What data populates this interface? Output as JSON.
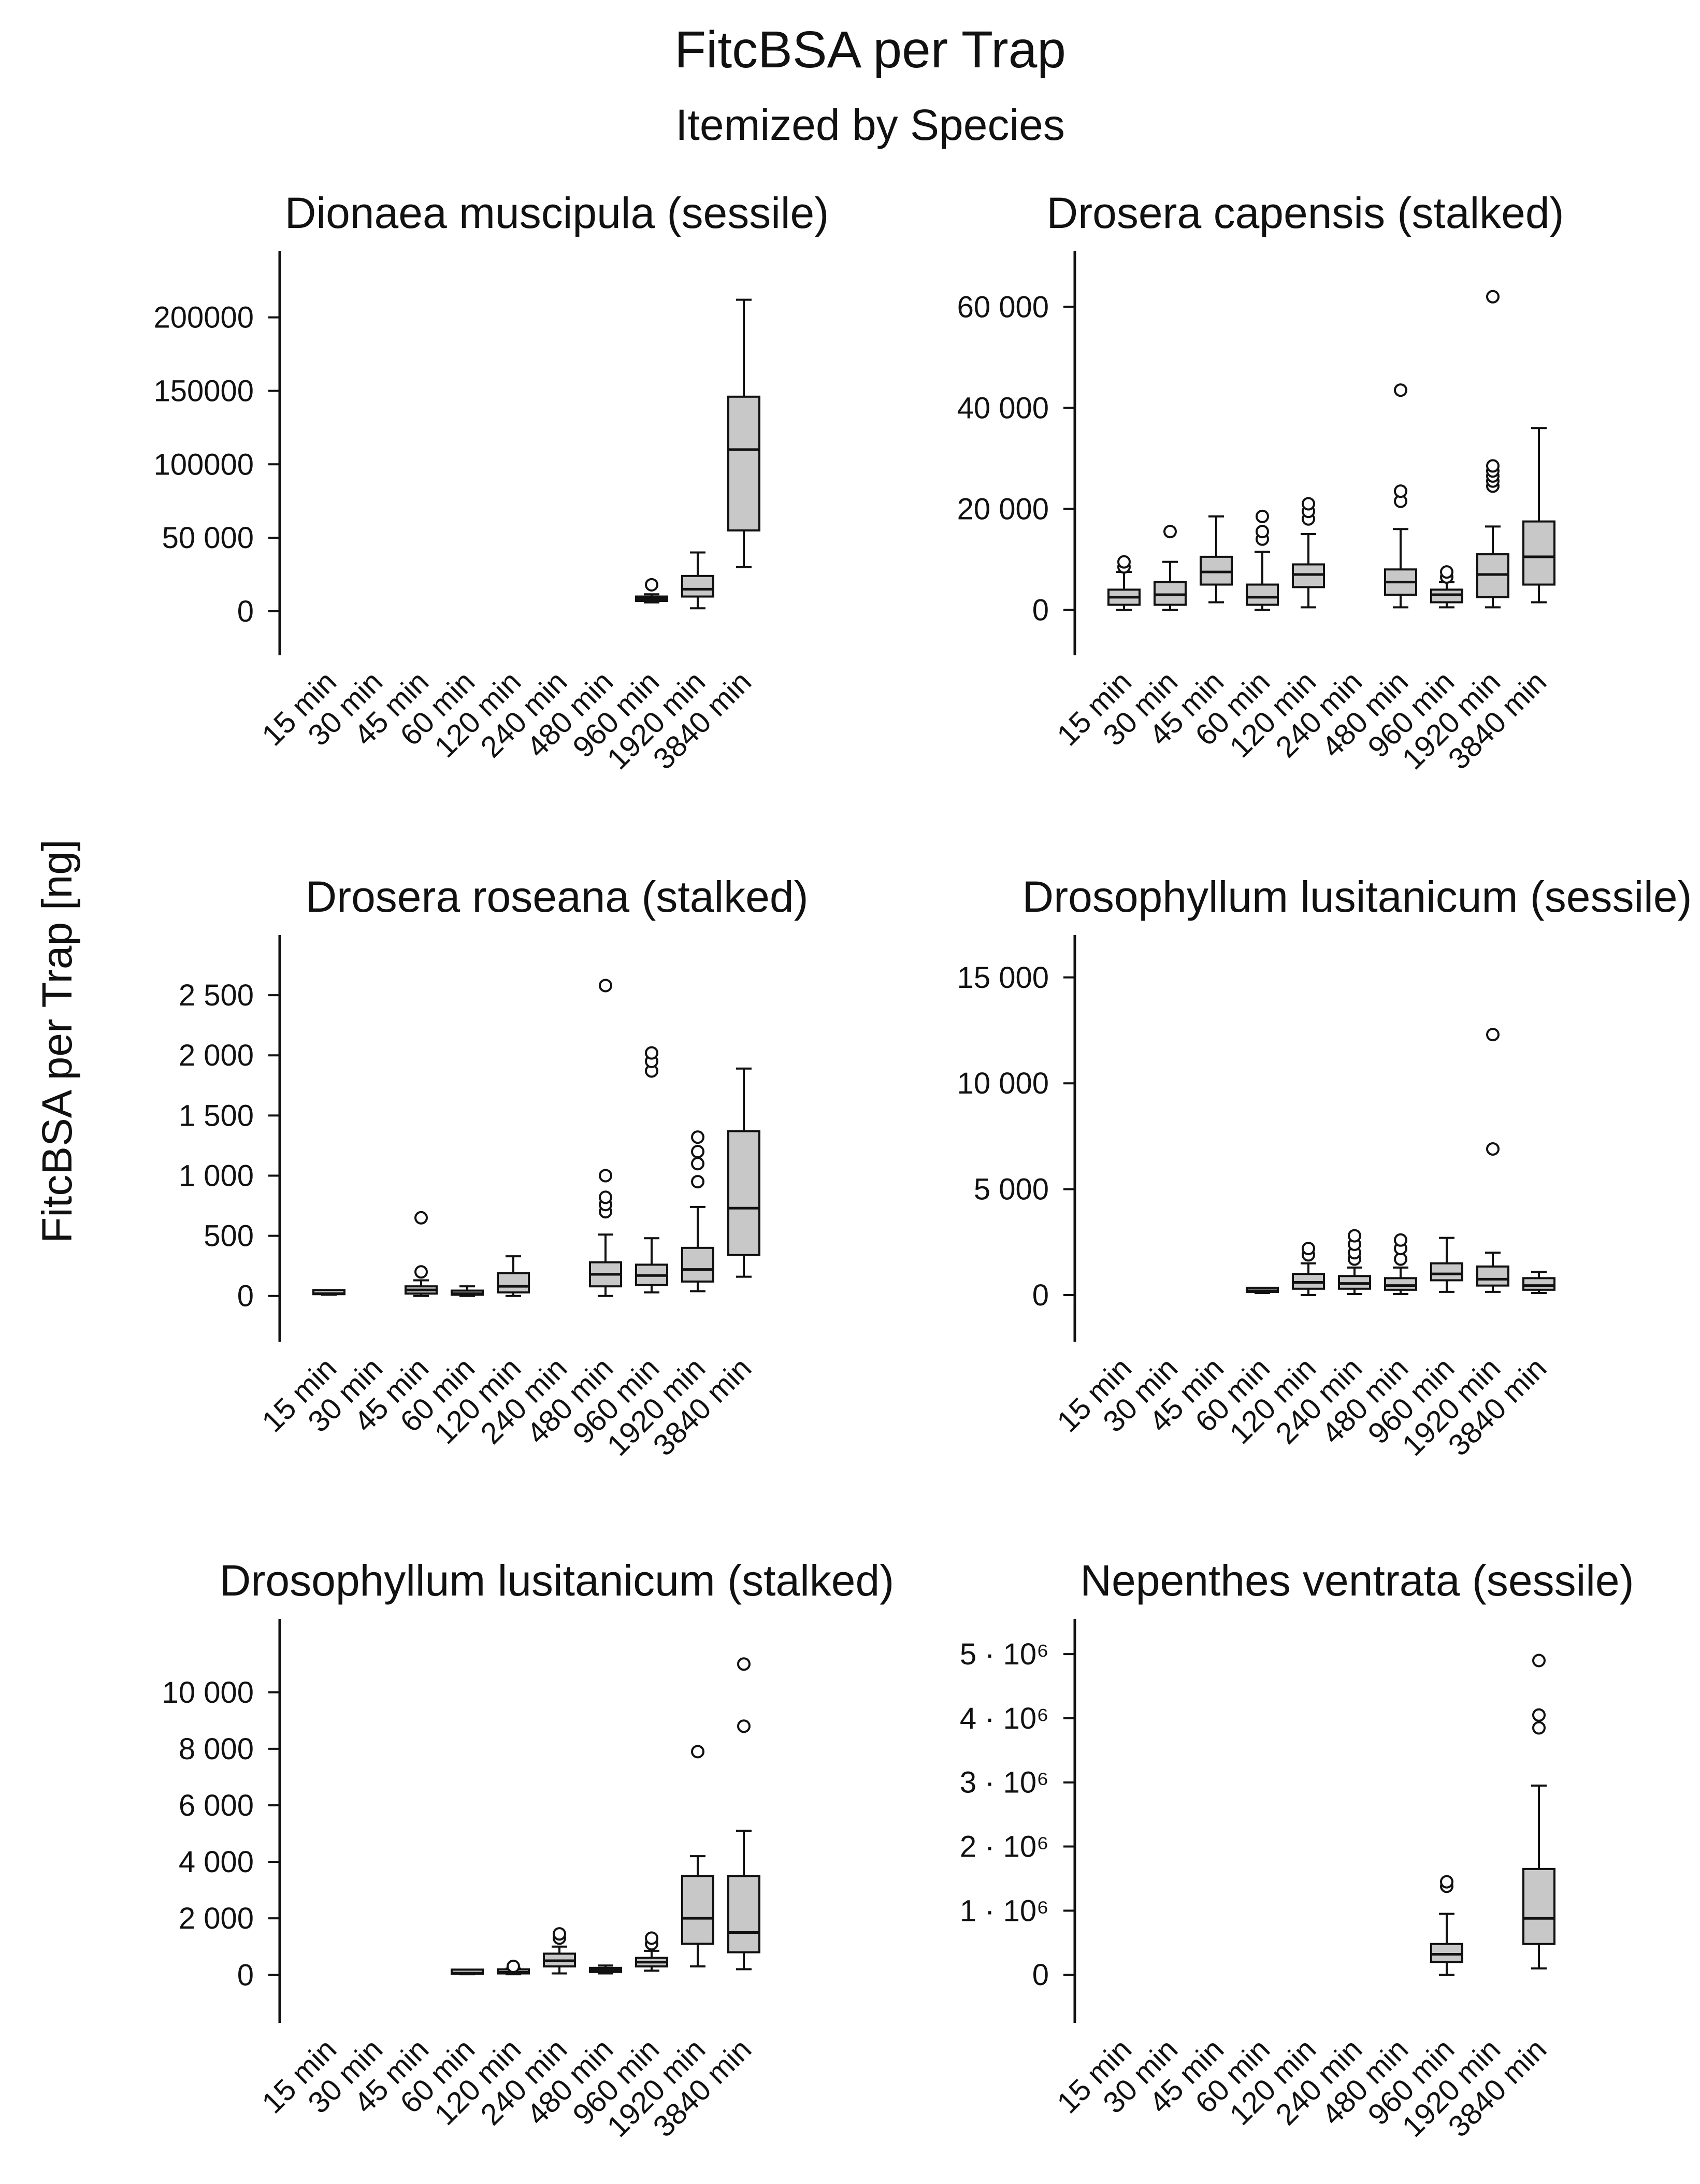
{
  "title": "FitcBSA per Trap",
  "subtitle": "Itemized by Species",
  "ylabel": "FitcBSA per Trap [ng]",
  "colors": {
    "box_fill": "#c8c8c8",
    "stroke": "#111111",
    "background": "#ffffff"
  },
  "categories": [
    "15 min",
    "30 min",
    "45 min",
    "60 min",
    "120 min",
    "240 min",
    "480 min",
    "960 min",
    "1920 min",
    "3840 min"
  ],
  "chart_data": [
    {
      "type": "box",
      "title": "Dionaea muscipula (sessile)",
      "categories": [
        "15 min",
        "30 min",
        "45 min",
        "60 min",
        "120 min",
        "240 min",
        "480 min",
        "960 min",
        "1920 min",
        "3840 min"
      ],
      "ylim": [
        -30000,
        245000
      ],
      "yticks": [
        0,
        50000,
        100000,
        150000,
        200000
      ],
      "ytick_labels": [
        "0",
        "50 000",
        "100000",
        "150000",
        "200000"
      ],
      "boxes": [
        null,
        null,
        null,
        null,
        null,
        null,
        null,
        {
          "whislo": 6000,
          "q1": 7000,
          "med": 8500,
          "q3": 10000,
          "whishi": 11500,
          "fliers": [
            18000
          ]
        },
        {
          "whislo": 2000,
          "q1": 10000,
          "med": 15000,
          "q3": 24000,
          "whishi": 40000,
          "fliers": []
        },
        {
          "whislo": 30000,
          "q1": 55000,
          "med": 110000,
          "q3": 146000,
          "whishi": 212000,
          "fliers": []
        }
      ]
    },
    {
      "type": "box",
      "title": "Drosera capensis (stalked)",
      "categories": [
        "15 min",
        "30 min",
        "45 min",
        "60 min",
        "120 min",
        "240 min",
        "480 min",
        "960 min",
        "1920 min",
        "3840 min"
      ],
      "ylim": [
        -9000,
        71000
      ],
      "yticks": [
        0,
        20000,
        40000,
        60000
      ],
      "ytick_labels": [
        "0",
        "20 000",
        "40 000",
        "60 000"
      ],
      "boxes": [
        {
          "whislo": 0,
          "q1": 1000,
          "med": 2500,
          "q3": 4000,
          "whishi": 7500,
          "fliers": [
            8500,
            9500
          ]
        },
        {
          "whislo": 0,
          "q1": 1000,
          "med": 3000,
          "q3": 5500,
          "whishi": 9500,
          "fliers": [
            15500
          ]
        },
        {
          "whislo": 1500,
          "q1": 5000,
          "med": 7500,
          "q3": 10500,
          "whishi": 18500,
          "fliers": []
        },
        {
          "whislo": 0,
          "q1": 1000,
          "med": 2500,
          "q3": 5000,
          "whishi": 11500,
          "fliers": [
            14000,
            15500,
            18500
          ]
        },
        {
          "whislo": 500,
          "q1": 4500,
          "med": 7000,
          "q3": 9000,
          "whishi": 15000,
          "fliers": [
            18000,
            19500,
            21000
          ]
        },
        null,
        {
          "whislo": 500,
          "q1": 3000,
          "med": 5500,
          "q3": 8000,
          "whishi": 16000,
          "fliers": [
            21500,
            23500,
            43500
          ]
        },
        {
          "whislo": 500,
          "q1": 1500,
          "med": 3000,
          "q3": 4000,
          "whishi": 5500,
          "fliers": [
            6500,
            7500
          ]
        },
        {
          "whislo": 500,
          "q1": 2500,
          "med": 7000,
          "q3": 11000,
          "whishi": 16500,
          "fliers": [
            24500,
            25500,
            26500,
            27500,
            28500,
            62000
          ]
        },
        {
          "whislo": 1500,
          "q1": 5000,
          "med": 10500,
          "q3": 17500,
          "whishi": 36000,
          "fliers": []
        }
      ]
    },
    {
      "type": "box",
      "title": "Drosera roseana (stalked)",
      "categories": [
        "15 min",
        "30 min",
        "45 min",
        "60 min",
        "120 min",
        "240 min",
        "480 min",
        "960 min",
        "1920 min",
        "3840 min"
      ],
      "ylim": [
        -380,
        3000
      ],
      "yticks": [
        0,
        500,
        1000,
        1500,
        2000,
        2500
      ],
      "ytick_labels": [
        "0",
        "500",
        "1 000",
        "1 500",
        "2 000",
        "2 500"
      ],
      "boxes": [
        {
          "whislo": 10,
          "q1": 15,
          "med": 20,
          "q3": 25,
          "whishi": 30,
          "fliers": []
        },
        null,
        {
          "whislo": 0,
          "q1": 20,
          "med": 50,
          "q3": 80,
          "whishi": 130,
          "fliers": [
            200,
            650
          ]
        },
        {
          "whislo": 0,
          "q1": 10,
          "med": 20,
          "q3": 40,
          "whishi": 80,
          "fliers": []
        },
        {
          "whislo": 0,
          "q1": 30,
          "med": 80,
          "q3": 190,
          "whishi": 330,
          "fliers": []
        },
        null,
        {
          "whislo": 0,
          "q1": 80,
          "med": 180,
          "q3": 280,
          "whishi": 510,
          "fliers": [
            700,
            760,
            820,
            1000,
            2580
          ]
        },
        {
          "whislo": 30,
          "q1": 90,
          "med": 170,
          "q3": 260,
          "whishi": 480,
          "fliers": [
            1870,
            1950,
            2020
          ]
        },
        {
          "whislo": 40,
          "q1": 120,
          "med": 220,
          "q3": 400,
          "whishi": 740,
          "fliers": [
            950,
            1100,
            1200,
            1320
          ]
        },
        {
          "whislo": 160,
          "q1": 340,
          "med": 730,
          "q3": 1370,
          "whishi": 1890,
          "fliers": []
        }
      ]
    },
    {
      "type": "box",
      "title": "Drosophyllum lusitanicum (sessile)",
      "categories": [
        "15 min",
        "30 min",
        "45 min",
        "60 min",
        "120 min",
        "240 min",
        "480 min",
        "960 min",
        "1920 min",
        "3840 min"
      ],
      "ylim": [
        -2200,
        17000
      ],
      "yticks": [
        0,
        5000,
        10000,
        15000
      ],
      "ytick_labels": [
        "0",
        "5 000",
        "10 000",
        "15 000"
      ],
      "boxes": [
        null,
        null,
        null,
        {
          "whislo": 100,
          "q1": 150,
          "med": 200,
          "q3": 260,
          "whishi": 320,
          "fliers": []
        },
        {
          "whislo": 0,
          "q1": 300,
          "med": 600,
          "q3": 1000,
          "whishi": 1500,
          "fliers": [
            1900,
            2200
          ]
        },
        {
          "whislo": 50,
          "q1": 300,
          "med": 550,
          "q3": 900,
          "whishi": 1300,
          "fliers": [
            1700,
            2000,
            2400,
            2800
          ]
        },
        {
          "whislo": 50,
          "q1": 250,
          "med": 450,
          "q3": 800,
          "whishi": 1300,
          "fliers": [
            1700,
            2200,
            2600
          ]
        },
        {
          "whislo": 150,
          "q1": 700,
          "med": 1000,
          "q3": 1500,
          "whishi": 2700,
          "fliers": []
        },
        {
          "whislo": 150,
          "q1": 450,
          "med": 750,
          "q3": 1350,
          "whishi": 2000,
          "fliers": [
            6900,
            12300
          ]
        },
        {
          "whislo": 100,
          "q1": 250,
          "med": 450,
          "q3": 800,
          "whishi": 1100,
          "fliers": []
        }
      ]
    },
    {
      "type": "box",
      "title": "Drosophyllum lusitanicum (stalked)",
      "categories": [
        "15 min",
        "30 min",
        "45 min",
        "60 min",
        "120 min",
        "240 min",
        "480 min",
        "960 min",
        "1920 min",
        "3840 min"
      ],
      "ylim": [
        -1700,
        12600
      ],
      "yticks": [
        0,
        2000,
        4000,
        6000,
        8000,
        10000
      ],
      "ytick_labels": [
        "0",
        "2 000",
        "4 000",
        "6 000",
        "8 000",
        "10 000"
      ],
      "boxes": [
        null,
        null,
        null,
        {
          "whislo": 20,
          "q1": 40,
          "med": 60,
          "q3": 90,
          "whishi": 120,
          "fliers": []
        },
        {
          "whislo": 20,
          "q1": 50,
          "med": 90,
          "q3": 150,
          "whishi": 220,
          "fliers": [
            300
          ]
        },
        {
          "whislo": 50,
          "q1": 300,
          "med": 500,
          "q3": 750,
          "whishi": 1000,
          "fliers": [
            1300,
            1450
          ]
        },
        {
          "whislo": 50,
          "q1": 100,
          "med": 180,
          "q3": 240,
          "whishi": 330,
          "fliers": []
        },
        {
          "whislo": 150,
          "q1": 300,
          "med": 450,
          "q3": 600,
          "whishi": 850,
          "fliers": [
            1100,
            1300
          ]
        },
        {
          "whislo": 300,
          "q1": 1100,
          "med": 2000,
          "q3": 3500,
          "whishi": 4200,
          "fliers": [
            7900
          ]
        },
        {
          "whislo": 200,
          "q1": 800,
          "med": 1500,
          "q3": 3500,
          "whishi": 5100,
          "fliers": [
            8800,
            11000
          ]
        }
      ]
    },
    {
      "type": "box",
      "title": "Nepenthes ventrata (sessile)",
      "categories": [
        "15 min",
        "30 min",
        "45 min",
        "60 min",
        "120 min",
        "240 min",
        "480 min",
        "960 min",
        "1920 min",
        "3840 min"
      ],
      "ylim": [
        -750000,
        5550000
      ],
      "yticks": [
        0,
        1000000,
        2000000,
        3000000,
        4000000,
        5000000
      ],
      "ytick_labels": [
        "0",
        "1 · 10⁶",
        "2 · 10⁶",
        "3 · 10⁶",
        "4 · 10⁶",
        "5 · 10⁶"
      ],
      "boxes": [
        null,
        null,
        null,
        null,
        null,
        null,
        null,
        {
          "whislo": 0,
          "q1": 200000,
          "med": 320000,
          "q3": 480000,
          "whishi": 950000,
          "fliers": [
            1380000,
            1450000
          ]
        },
        null,
        {
          "whislo": 100000,
          "q1": 480000,
          "med": 880000,
          "q3": 1650000,
          "whishi": 2950000,
          "fliers": [
            3850000,
            4050000,
            4900000
          ]
        }
      ]
    }
  ]
}
